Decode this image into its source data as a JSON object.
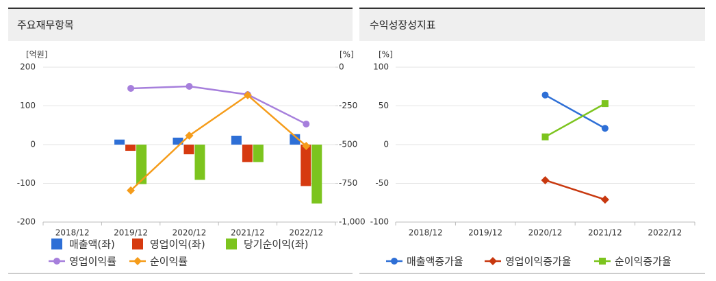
{
  "chart_data": [
    {
      "type": "combo",
      "title": "주요재무항목",
      "ylabel": "[억원]",
      "y2label": "[%]",
      "categories": [
        "2018/12",
        "2019/12",
        "2020/12",
        "2021/12",
        "2022/12"
      ],
      "ylim": [
        -200,
        200
      ],
      "yticks": [
        200,
        100,
        0,
        -100,
        -200
      ],
      "y2lim": [
        -1000,
        0
      ],
      "y2ticks": [
        0,
        {
          "value": -250,
          "label": "-250"
        },
        {
          "value": -500,
          "label": "-500"
        },
        {
          "value": -750,
          "label": "-750"
        },
        {
          "value": -1000,
          "label": "-1,000"
        }
      ],
      "grid": true,
      "series": [
        {
          "name": "매출액(좌)",
          "type": "bar",
          "color": "#2e6fd6",
          "values": [
            null,
            13,
            18,
            23,
            27
          ]
        },
        {
          "name": "영업이익(좌)",
          "type": "bar",
          "color": "#d63a10",
          "values": [
            null,
            -16,
            -25,
            -45,
            -107
          ]
        },
        {
          "name": "당기순이익(좌)",
          "type": "bar",
          "color": "#7cc41e",
          "values": [
            null,
            -102,
            -91,
            -45,
            -152
          ]
        },
        {
          "name": "영업이익률",
          "type": "line",
          "axis": "y2",
          "marker": "circle",
          "color": "#a67fdc",
          "values": [
            null,
            -137,
            -124,
            -177,
            -367
          ]
        },
        {
          "name": "순이익률",
          "type": "line",
          "axis": "y2",
          "marker": "diamond",
          "color": "#f59c1a",
          "values": [
            null,
            -796,
            -442,
            -181,
            -509
          ]
        }
      ]
    },
    {
      "type": "line",
      "title": "수익성장성지표",
      "ylabel": "[%]",
      "categories": [
        "2018/12",
        "2019/12",
        "2020/12",
        "2021/12",
        "2022/12"
      ],
      "ylim": [
        -100,
        100
      ],
      "yticks": [
        100,
        50,
        0,
        -50,
        -100
      ],
      "grid": true,
      "series": [
        {
          "name": "매출액증가율",
          "type": "line",
          "marker": "circle",
          "color": "#2e6fd6",
          "values": [
            null,
            null,
            64,
            21,
            null
          ]
        },
        {
          "name": "영업이익증가율",
          "type": "line",
          "marker": "diamond",
          "color": "#c8380f",
          "values": [
            null,
            null,
            -46,
            -71,
            null
          ]
        },
        {
          "name": "순이익증가율",
          "type": "line",
          "marker": "square",
          "color": "#7cc41e",
          "values": [
            null,
            null,
            10,
            53,
            null
          ]
        }
      ]
    }
  ]
}
